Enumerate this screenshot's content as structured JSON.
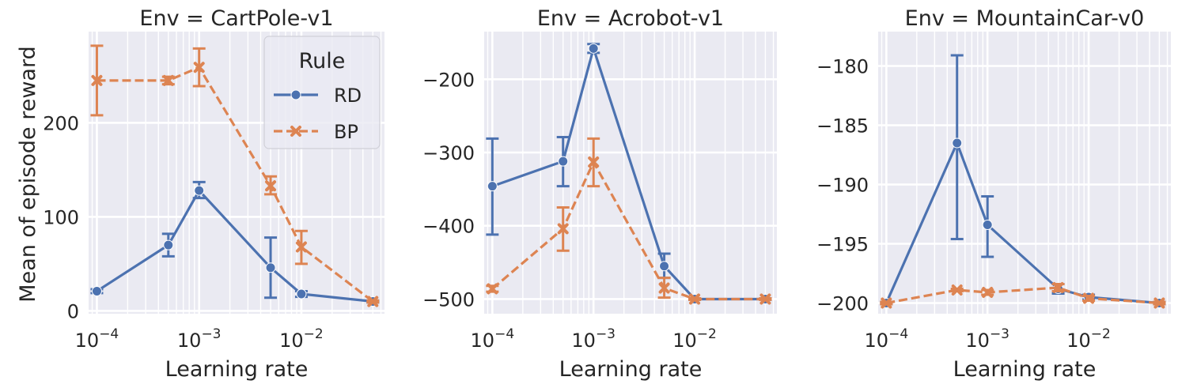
{
  "chart_data": [
    {
      "type": "line",
      "title": "Env = CartPole-v1",
      "xlabel": "Learning rate",
      "ylabel": "Mean of episode reward",
      "xscale": "log",
      "xlim": [
        8.3e-05,
        0.065
      ],
      "ylim": [
        -3,
        297
      ],
      "x": [
        0.0001,
        0.0005,
        0.001,
        0.005,
        0.01,
        0.05
      ],
      "xticks": [
        {
          "value": 0.0001,
          "base": "10",
          "exp": "−4"
        },
        {
          "value": 0.001,
          "base": "10",
          "exp": "−3"
        },
        {
          "value": 0.01,
          "base": "10",
          "exp": "−2"
        }
      ],
      "yticks": [
        {
          "value": 0,
          "label": "0"
        },
        {
          "value": 100,
          "label": "100"
        },
        {
          "value": 200,
          "label": "200"
        }
      ],
      "grid": true,
      "legend": {
        "title": "Rule",
        "position": "top-right"
      },
      "series": [
        {
          "name": "RD",
          "color": "#4c72b0",
          "marker": "circle",
          "dash": "solid",
          "values": [
            21,
            70,
            128,
            46,
            18,
            10
          ],
          "err_low": [
            19,
            58,
            120,
            14,
            15,
            9
          ],
          "err_high": [
            23,
            82,
            137,
            78,
            21,
            11
          ]
        },
        {
          "name": "BP",
          "color": "#dd8452",
          "marker": "x",
          "dash": "dashed",
          "values": [
            245,
            245,
            259,
            133,
            68,
            10
          ],
          "err_low": [
            208,
            241,
            239,
            124,
            50,
            9
          ],
          "err_high": [
            282,
            249,
            279,
            143,
            85,
            11
          ]
        }
      ]
    },
    {
      "type": "line",
      "title": "Env = Acrobot-v1",
      "xlabel": "Learning rate",
      "ylabel": "",
      "xscale": "log",
      "xlim": [
        8.3e-05,
        0.065
      ],
      "ylim": [
        -520,
        -135
      ],
      "x": [
        0.0001,
        0.0005,
        0.001,
        0.005,
        0.01,
        0.05
      ],
      "xticks": [
        {
          "value": 0.0001,
          "base": "10",
          "exp": "−4"
        },
        {
          "value": 0.001,
          "base": "10",
          "exp": "−3"
        },
        {
          "value": 0.01,
          "base": "10",
          "exp": "−2"
        }
      ],
      "yticks": [
        {
          "value": -500,
          "label": "−500"
        },
        {
          "value": -400,
          "label": "−400"
        },
        {
          "value": -300,
          "label": "−300"
        },
        {
          "value": -200,
          "label": "−200"
        }
      ],
      "grid": true,
      "legend": null,
      "series": [
        {
          "name": "RD",
          "color": "#4c72b0",
          "marker": "circle",
          "dash": "solid",
          "values": [
            -346,
            -312,
            -158,
            -455,
            -500,
            -500
          ],
          "err_low": [
            -412,
            -346,
            -164,
            -471,
            -501,
            -501
          ],
          "err_high": [
            -281,
            -279,
            -152,
            -438,
            -499,
            -499
          ]
        },
        {
          "name": "BP",
          "color": "#dd8452",
          "marker": "x",
          "dash": "dashed",
          "values": [
            -486,
            -404,
            -313,
            -485,
            -500,
            -500
          ],
          "err_low": [
            -490,
            -434,
            -346,
            -498,
            -501,
            -501
          ],
          "err_high": [
            -482,
            -375,
            -281,
            -471,
            -499,
            -499
          ]
        }
      ]
    },
    {
      "type": "line",
      "title": "Env = MountainCar-v0",
      "xlabel": "Learning rate",
      "ylabel": "",
      "xscale": "log",
      "xlim": [
        8.3e-05,
        0.065
      ],
      "ylim": [
        -200.9,
        -177.1
      ],
      "x": [
        0.0001,
        0.0005,
        0.001,
        0.005,
        0.01,
        0.05
      ],
      "xticks": [
        {
          "value": 0.0001,
          "base": "10",
          "exp": "−4"
        },
        {
          "value": 0.001,
          "base": "10",
          "exp": "−3"
        },
        {
          "value": 0.01,
          "base": "10",
          "exp": "−2"
        }
      ],
      "yticks": [
        {
          "value": -200,
          "label": "−200"
        },
        {
          "value": -195,
          "label": "−195"
        },
        {
          "value": -190,
          "label": "−190"
        },
        {
          "value": -185,
          "label": "−185"
        },
        {
          "value": -180,
          "label": "−180"
        }
      ],
      "grid": true,
      "legend": null,
      "series": [
        {
          "name": "RD",
          "color": "#4c72b0",
          "marker": "circle",
          "dash": "solid",
          "values": [
            -200,
            -186.5,
            -193.4,
            -198.8,
            -199.5,
            -200
          ],
          "err_low": [
            -200.1,
            -194.6,
            -196.1,
            -199.2,
            -199.7,
            -200.1
          ],
          "err_high": [
            -199.9,
            -179.1,
            -191.0,
            -198.4,
            -199.3,
            -199.9
          ]
        },
        {
          "name": "BP",
          "color": "#dd8452",
          "marker": "x",
          "dash": "dashed",
          "values": [
            -200,
            -198.9,
            -199.1,
            -198.7,
            -199.6,
            -200
          ],
          "err_low": [
            -200.1,
            -199.0,
            -199.3,
            -199.0,
            -199.8,
            -200.1
          ],
          "err_high": [
            -199.9,
            -198.8,
            -198.9,
            -198.4,
            -199.4,
            -199.9
          ]
        }
      ]
    }
  ]
}
